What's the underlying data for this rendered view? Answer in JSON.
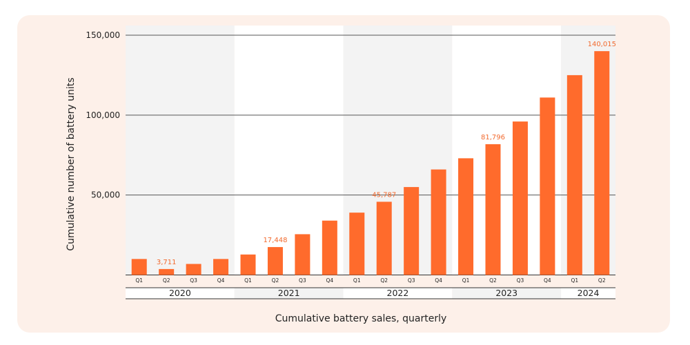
{
  "chart_data": {
    "type": "bar",
    "title": "",
    "xlabel": "Cumulative battery sales, quarterly",
    "ylabel": "Cumulative number of battery units",
    "ylim": [
      0,
      150000
    ],
    "yticks": [
      "50,000",
      "100,000",
      "150,000"
    ],
    "ytick_values": [
      50000,
      100000,
      150000
    ],
    "grid": true,
    "bar_color": "#ff6b2c",
    "label_color": "#f26a2e",
    "years": [
      "2020",
      "2021",
      "2022",
      "2023",
      "2024"
    ],
    "categories": [
      "Q1",
      "Q2",
      "Q3",
      "Q4",
      "Q1",
      "Q2",
      "Q3",
      "Q4",
      "Q1",
      "Q2",
      "Q3",
      "Q4",
      "Q1",
      "Q2",
      "Q3",
      "Q4",
      "Q1",
      "Q2"
    ],
    "values": [
      10000,
      3711,
      6900,
      10000,
      12800,
      17448,
      25500,
      34000,
      39000,
      45787,
      55000,
      66000,
      73000,
      81796,
      96000,
      111000,
      125000,
      140015
    ],
    "data_labels": [
      "",
      "3,711",
      "",
      "",
      "",
      "17,448",
      "",
      "",
      "",
      "45,787",
      "",
      "",
      "",
      "81,796",
      "",
      "",
      "",
      "140,015"
    ]
  }
}
